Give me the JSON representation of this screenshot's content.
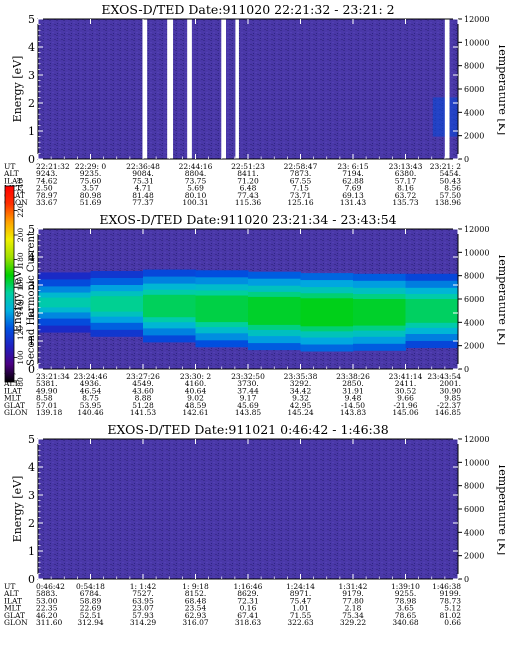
{
  "panels": [
    {
      "title": "EXOS-D/TED   Date:911020  22:21:32 - 23:21: 2",
      "y_axis_label": "Energy [eV]",
      "y_ticks": [
        "0",
        "1",
        "2",
        "3",
        "4",
        "5"
      ],
      "temp_axis_label": "Temperature [K]",
      "temp_ticks": [
        "0",
        "2000",
        "4000",
        "6000",
        "8000",
        "10000",
        "12000"
      ],
      "row_labels": [
        "UT",
        "ALT",
        "ILAT",
        "MLT",
        "GLAT",
        "GLON"
      ],
      "columns": [
        [
          "22:21:32",
          "9243.",
          "74.62",
          "2.50",
          "78.97",
          "33.67"
        ],
        [
          "22:29: 0",
          "9235.",
          "75.60",
          "3.57",
          "80.98",
          "51.69"
        ],
        [
          "22:36:48",
          "9084.",
          "75.31",
          "4.71",
          "81.48",
          "77.37"
        ],
        [
          "22:44:16",
          "8804.",
          "73.75",
          "5.69",
          "80.10",
          "100.31"
        ],
        [
          "22:51:23",
          "8411.",
          "71.20",
          "6.48",
          "77.43",
          "115.36"
        ],
        [
          "22:58:47",
          "7873.",
          "67.55",
          "7.15",
          "73.71",
          "125.16"
        ],
        [
          "23: 6:15",
          "7194.",
          "62.88",
          "7.69",
          "69.13",
          "131.43"
        ],
        [
          "23:13:43",
          "6380.",
          "57.17",
          "8.16",
          "63.72",
          "135.73"
        ],
        [
          "23:21: 2",
          "5454.",
          "50.43",
          "8.56",
          "57.50",
          "138.96"
        ]
      ],
      "data_gaps": [
        [
          "22:36:20",
          "22:37:00"
        ],
        [
          "22:39:50",
          "22:40:40"
        ],
        [
          "22:42:40",
          "22:43:20"
        ],
        [
          "22:47:30",
          "22:48:10"
        ],
        [
          "22:49:30",
          "22:50:00"
        ],
        [
          "23:19:10",
          "23:19:50"
        ]
      ]
    },
    {
      "title": "EXOS-D/TED   Date:911020  23:21:34 - 23:43:54",
      "y_axis_label": "Energy [eV]",
      "y_ticks": [
        "0",
        "1",
        "2",
        "3",
        "4",
        "5"
      ],
      "temp_axis_label": "Temperature [K]",
      "temp_ticks": [
        "0",
        "2000",
        "4000",
        "6000",
        "8000",
        "10000",
        "12000"
      ],
      "row_labels": [
        "UT",
        "ALT",
        "ILAT",
        "MLT",
        "GLAT",
        "GLON"
      ],
      "columns": [
        [
          "23:21:34",
          "5381.",
          "49.90",
          "8.58",
          "57.01",
          "139.18"
        ],
        [
          "23:24:46",
          "4936.",
          "46.54",
          "8.75",
          "53.95",
          "140.46"
        ],
        [
          "23:27:26",
          "4549.",
          "43.60",
          "8.88",
          "51.28",
          "141.53"
        ],
        [
          "23:30: 2",
          "4160.",
          "40.64",
          "9.02",
          "48.59",
          "142.61"
        ],
        [
          "23:32:50",
          "3730.",
          "37.44",
          "9.17",
          "45.69",
          "143.85"
        ],
        [
          "23:35:38",
          "3292.",
          "34.42",
          "9.32",
          "42.95",
          "145.24"
        ],
        [
          "23:38:26",
          "2850.",
          "31.91",
          "9.48",
          "-14.50",
          "143.83"
        ],
        [
          "23:41:14",
          "2411.",
          "30.52",
          "9.66",
          "-21.96",
          "145.06"
        ],
        [
          "23:43:54",
          "2001.",
          "30.90",
          "9.85",
          "-22.37",
          "146.85"
        ]
      ],
      "data_gaps": []
    },
    {
      "title": "EXOS-D/TED   Date:911021  0:46:42 - 1:46:38",
      "y_axis_label": "Energy [eV]",
      "y_ticks": [
        "0",
        "1",
        "2",
        "3",
        "4",
        "5"
      ],
      "temp_axis_label": "Temperature [K]",
      "temp_ticks": [
        "0",
        "2000",
        "4000",
        "6000",
        "8000",
        "10000",
        "12000"
      ],
      "row_labels": [
        "UT",
        "ALT",
        "ILAT",
        "MLT",
        "GLAT",
        "GLON"
      ],
      "columns": [
        [
          "0:46:42",
          "5883.",
          "53.00",
          "22.35",
          "46.20",
          "311.60"
        ],
        [
          "0:54:18",
          "6784.",
          "58.89",
          "22.69",
          "52.51",
          "312.94"
        ],
        [
          "1: 1:42",
          "7527.",
          "63.95",
          "23.07",
          "57.93",
          "314.29"
        ],
        [
          "1: 9:18",
          "8152.",
          "68.48",
          "23.54",
          "62.93",
          "316.07"
        ],
        [
          "1:16:46",
          "8629.",
          "72.31",
          "0.16",
          "67.41",
          "318.63"
        ],
        [
          "1:24:14",
          "8971.",
          "75.47",
          "1.01",
          "71.55",
          "322.63"
        ],
        [
          "1:31:42",
          "9179.",
          "77.80",
          "2.18",
          "75.34",
          "329.22"
        ],
        [
          "1:39:10",
          "9255.",
          "78.98",
          "3.65",
          "78.65",
          "340.68"
        ],
        [
          "1:46:38",
          "9199.",
          "78.73",
          "5.12",
          "81.02",
          "0.66"
        ]
      ],
      "data_gaps": []
    }
  ],
  "colorbar": {
    "label": "Second Harmonic Current",
    "ticks": [
      "80",
      "100",
      "120",
      "140",
      "160",
      "180",
      "200",
      "220",
      "240"
    ]
  },
  "colors": {
    "background": "#4232a0",
    "gap": "#ffffff",
    "colorbar_stops": [
      "#000000",
      "#4b0082",
      "#2020c0",
      "#0050e0",
      "#00b0e0",
      "#00d0a0",
      "#00d000",
      "#a0e000",
      "#f0f000",
      "#ffa000",
      "#ff3000",
      "#ff0000"
    ]
  },
  "chart_data": [
    {
      "type": "heatmap",
      "title": "EXOS-D/TED   Date:911020  22:21:32 - 23:21: 2",
      "xlabel": "UT",
      "ylabel": "Energy [eV]",
      "y2label": "Temperature [K]",
      "x": [
        "22:21:32",
        "22:29: 0",
        "22:36:48",
        "22:44:16",
        "22:51:23",
        "22:58:47",
        "23: 6:15",
        "23:13:43",
        "23:21: 2"
      ],
      "ylim": [
        0,
        5
      ],
      "y2lim": [
        0,
        12000
      ],
      "colorbar_range": [
        80,
        240
      ],
      "background_level": 110,
      "features": [
        {
          "t_frac": [
            0.94,
            1.0
          ],
          "e_range": [
            0.8,
            2.2
          ],
          "level": 122
        }
      ]
    },
    {
      "type": "heatmap",
      "title": "EXOS-D/TED   Date:911020  23:21:34 - 23:43:54",
      "xlabel": "UT",
      "ylabel": "Energy [eV]",
      "y2label": "Temperature [K]",
      "x": [
        "23:21:34",
        "23:24:46",
        "23:27:26",
        "23:30: 2",
        "23:32:50",
        "23:35:38",
        "23:38:26",
        "23:41:14",
        "23:43:54"
      ],
      "ylim": [
        0,
        5
      ],
      "y2lim": [
        0,
        12000
      ],
      "colorbar_range": [
        80,
        240
      ],
      "background_level": 110,
      "band": {
        "centre_ev": [
          2.4,
          2.35,
          2.3,
          2.2,
          2.1,
          2.05,
          2.0,
          2.05,
          2.1
        ],
        "core_halfwidth_ev": [
          0.15,
          0.2,
          0.35,
          0.45,
          0.5,
          0.5,
          0.5,
          0.45,
          0.4
        ],
        "peak_level": [
          150,
          150,
          158,
          160,
          162,
          165,
          165,
          162,
          155
        ]
      }
    },
    {
      "type": "heatmap",
      "title": "EXOS-D/TED   Date:911021  0:46:42 - 1:46:38",
      "xlabel": "UT",
      "ylabel": "Energy [eV]",
      "y2label": "Temperature [K]",
      "x": [
        "0:46:42",
        "0:54:18",
        "1: 1:42",
        "1: 9:18",
        "1:16:46",
        "1:24:14",
        "1:31:42",
        "1:39:10",
        "1:46:38"
      ],
      "ylim": [
        0,
        5
      ],
      "y2lim": [
        0,
        12000
      ],
      "colorbar_range": [
        80,
        240
      ],
      "background_level": 108
    }
  ]
}
